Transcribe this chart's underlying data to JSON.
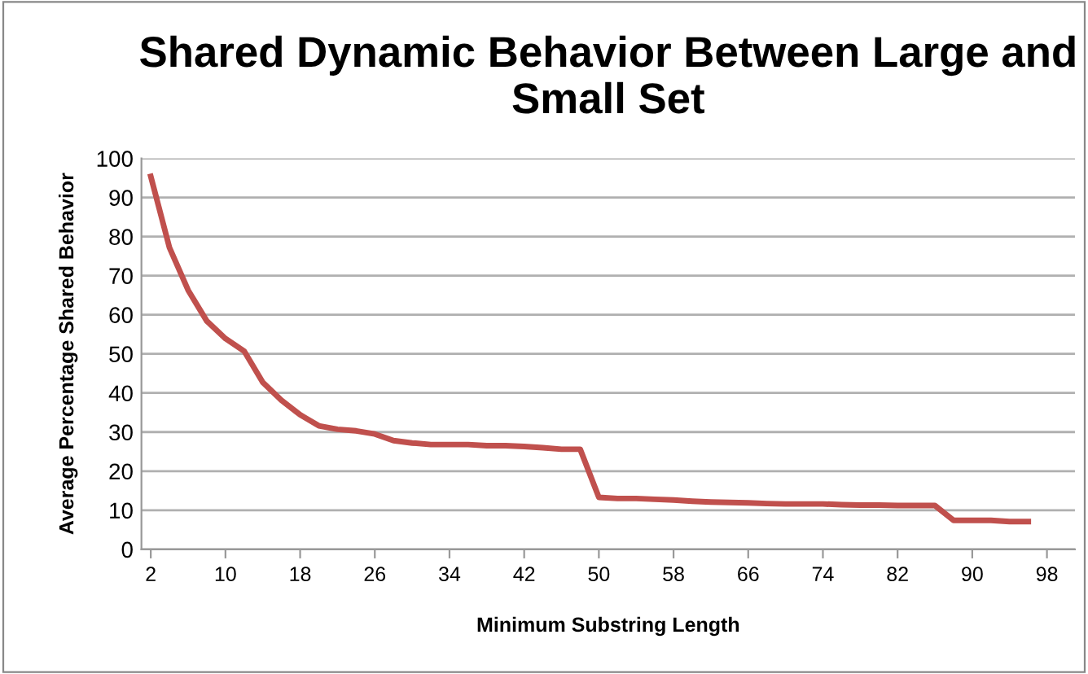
{
  "chart_data": {
    "type": "line",
    "title": "Shared Dynamic Behavior Between Large and\nSmall Set",
    "xlabel": "Minimum Substring Length",
    "ylabel": "Average Percentage Shared Behavior",
    "x": [
      2,
      4,
      6,
      8,
      10,
      12,
      14,
      16,
      18,
      20,
      22,
      24,
      26,
      28,
      30,
      32,
      34,
      36,
      38,
      40,
      42,
      44,
      46,
      48,
      50,
      52,
      54,
      56,
      58,
      60,
      62,
      64,
      66,
      68,
      70,
      72,
      74,
      76,
      78,
      80,
      82,
      84,
      86,
      88,
      90,
      92,
      94,
      96
    ],
    "series": [
      {
        "color": "#c0504d",
        "values": [
          95.4,
          77.2,
          66.3,
          58.4,
          53.9,
          50.7,
          42.7,
          38.1,
          34.4,
          31.6,
          30.7,
          30.3,
          29.5,
          27.8,
          27.2,
          26.8,
          26.8,
          26.8,
          26.5,
          26.5,
          26.3,
          26.0,
          25.6,
          25.6,
          13.3,
          13.0,
          13.0,
          12.8,
          12.6,
          12.3,
          12.1,
          12.0,
          11.9,
          11.7,
          11.6,
          11.6,
          11.6,
          11.4,
          11.3,
          11.3,
          11.2,
          11.2,
          11.2,
          7.4,
          7.4,
          7.4,
          7.1,
          7.1
        ]
      }
    ],
    "xlim": [
      1,
      101
    ],
    "xticks": [
      2,
      10,
      18,
      26,
      34,
      42,
      50,
      58,
      66,
      74,
      82,
      90,
      98
    ],
    "ylim": [
      0,
      100
    ],
    "yticks": [
      0,
      10,
      20,
      30,
      40,
      50,
      60,
      70,
      80,
      90,
      100
    ],
    "grid": "y",
    "legend": false,
    "marker": "none",
    "line_style": "solid"
  }
}
